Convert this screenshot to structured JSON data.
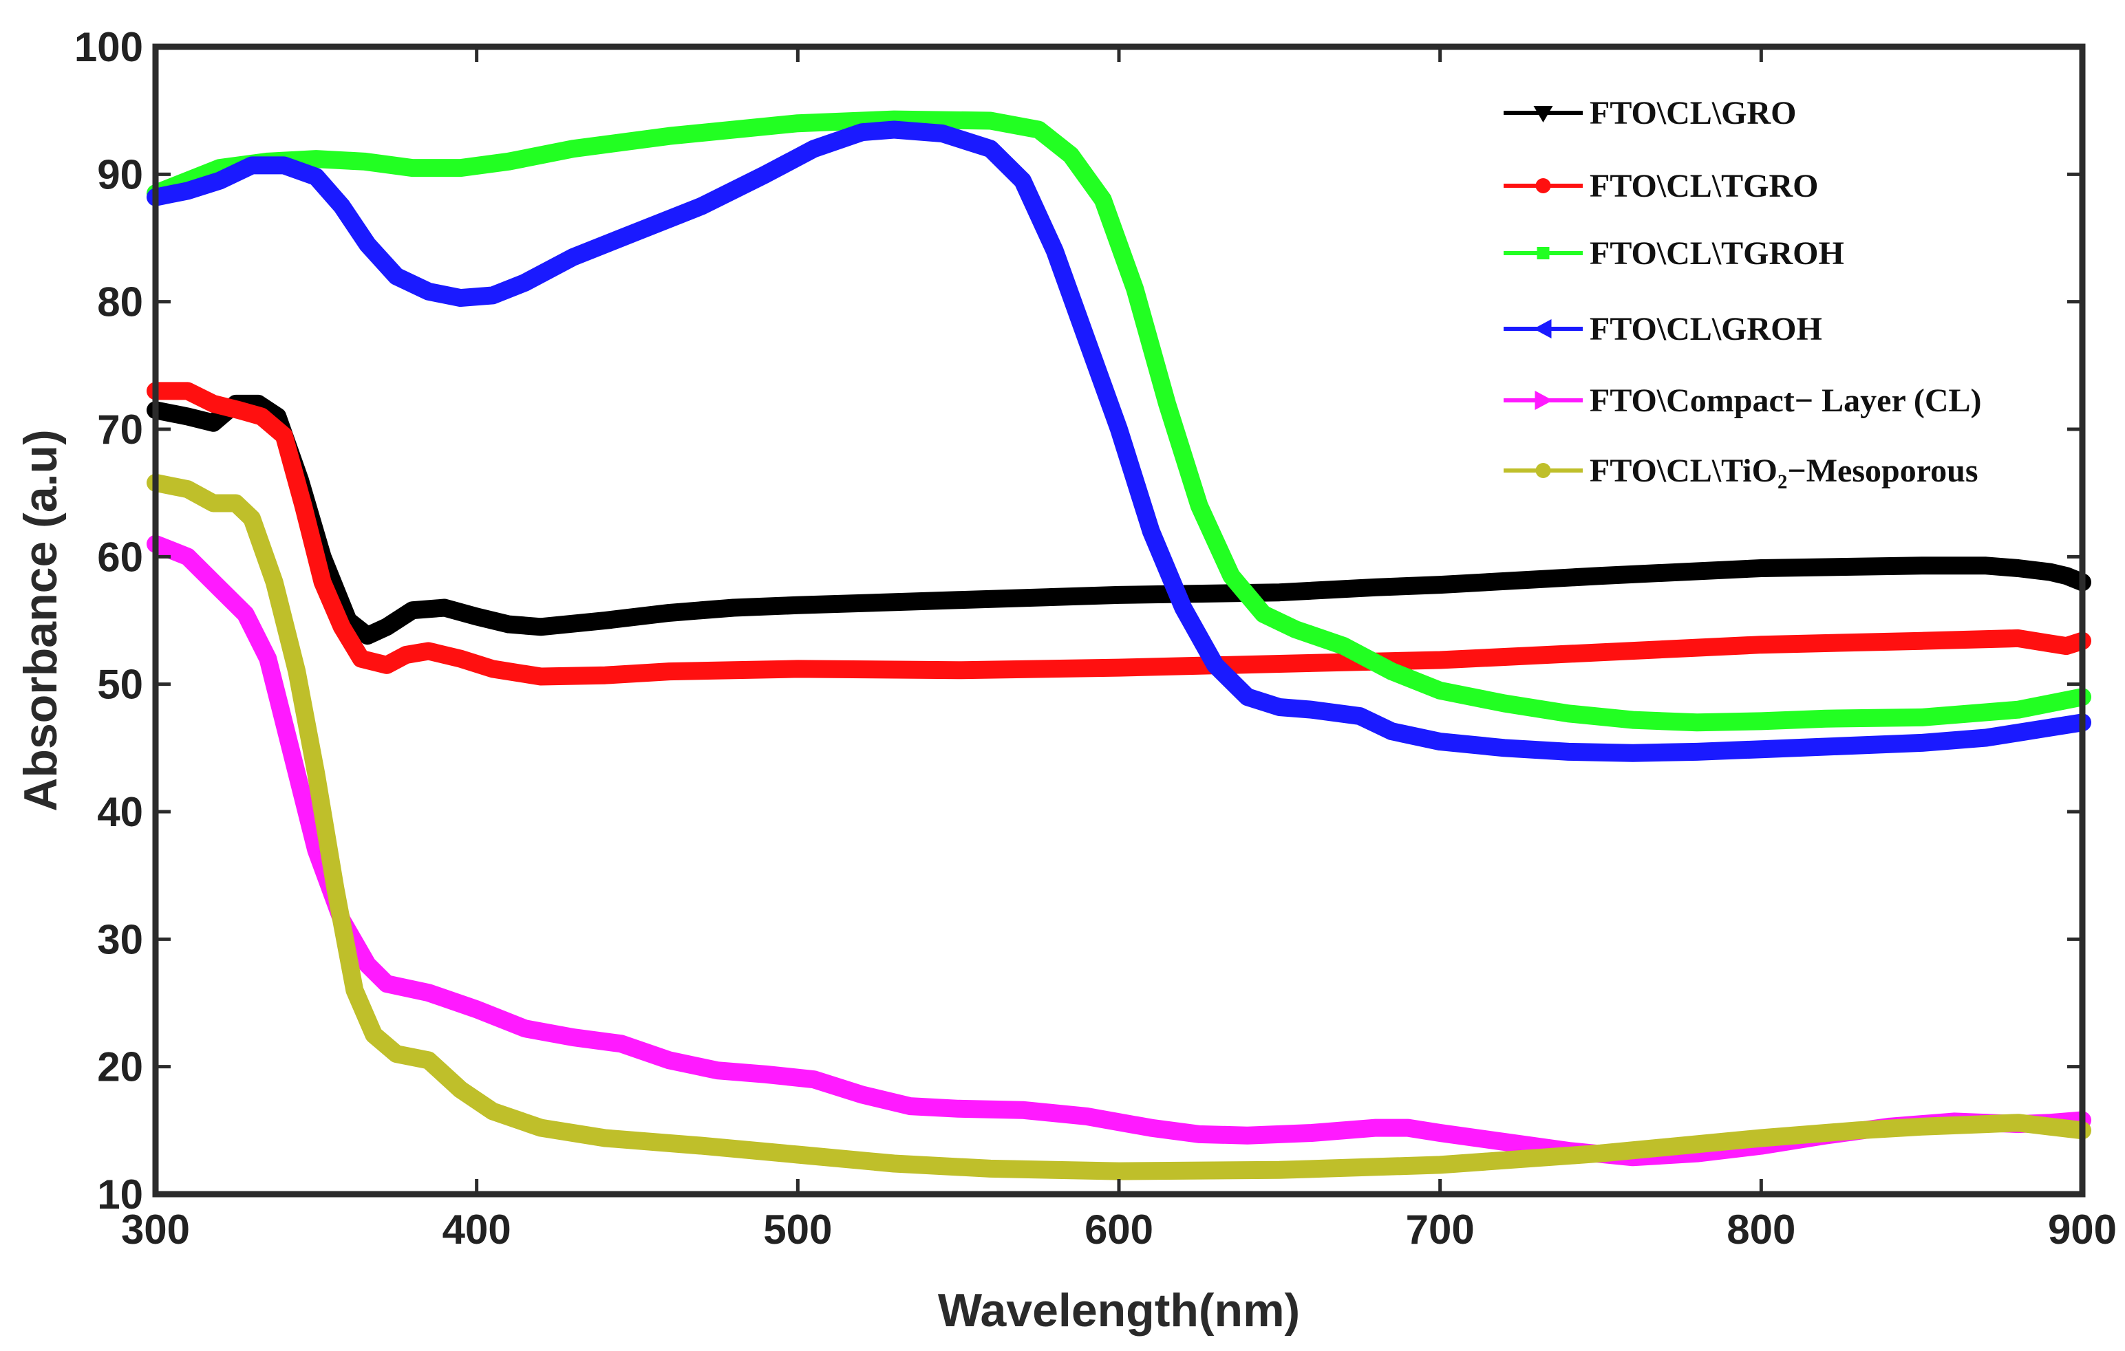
{
  "chart_data": {
    "type": "line",
    "title": "",
    "xlabel": "Wavelength(nm)",
    "ylabel": "Absorbance (a.u)",
    "xlim": [
      300,
      900
    ],
    "ylim": [
      10,
      100
    ],
    "xticks": [
      300,
      400,
      500,
      600,
      700,
      800,
      900
    ],
    "yticks": [
      10,
      20,
      30,
      40,
      50,
      60,
      70,
      80,
      90,
      100
    ],
    "grid": false,
    "legend_position": "top-right",
    "series": [
      {
        "name": "FTO\\CL\\GRO",
        "color": "#000000",
        "marker": "triangle-down",
        "points": [
          [
            300,
            71.5
          ],
          [
            310,
            71
          ],
          [
            318,
            70.5
          ],
          [
            325,
            72
          ],
          [
            332,
            72
          ],
          [
            338,
            71
          ],
          [
            345,
            66
          ],
          [
            352,
            60
          ],
          [
            360,
            55
          ],
          [
            366,
            53.8
          ],
          [
            372,
            54.5
          ],
          [
            380,
            55.8
          ],
          [
            390,
            56
          ],
          [
            400,
            55.3
          ],
          [
            410,
            54.7
          ],
          [
            420,
            54.5
          ],
          [
            440,
            55
          ],
          [
            460,
            55.6
          ],
          [
            480,
            56
          ],
          [
            500,
            56.2
          ],
          [
            550,
            56.6
          ],
          [
            600,
            57
          ],
          [
            650,
            57.2
          ],
          [
            680,
            57.6
          ],
          [
            700,
            57.8
          ],
          [
            750,
            58.5
          ],
          [
            800,
            59.1
          ],
          [
            850,
            59.3
          ],
          [
            870,
            59.3
          ],
          [
            880,
            59.1
          ],
          [
            890,
            58.8
          ],
          [
            895,
            58.5
          ],
          [
            900,
            58
          ]
        ]
      },
      {
        "name": "FTO\\CL\\TGRO",
        "color": "#ff1010",
        "marker": "circle",
        "points": [
          [
            300,
            73
          ],
          [
            310,
            73
          ],
          [
            318,
            72
          ],
          [
            326,
            71.5
          ],
          [
            333,
            71
          ],
          [
            340,
            69.5
          ],
          [
            346,
            64
          ],
          [
            352,
            58
          ],
          [
            358,
            54.5
          ],
          [
            364,
            52
          ],
          [
            372,
            51.5
          ],
          [
            378,
            52.3
          ],
          [
            385,
            52.6
          ],
          [
            395,
            52
          ],
          [
            405,
            51.2
          ],
          [
            420,
            50.6
          ],
          [
            440,
            50.7
          ],
          [
            460,
            51
          ],
          [
            480,
            51.1
          ],
          [
            500,
            51.2
          ],
          [
            550,
            51.1
          ],
          [
            600,
            51.3
          ],
          [
            650,
            51.6
          ],
          [
            700,
            51.9
          ],
          [
            750,
            52.5
          ],
          [
            800,
            53.1
          ],
          [
            850,
            53.4
          ],
          [
            880,
            53.6
          ],
          [
            890,
            53.2
          ],
          [
            895,
            53
          ],
          [
            900,
            53.4
          ]
        ]
      },
      {
        "name": "FTO\\CL\\TGROH",
        "color": "#22ff22",
        "marker": "square",
        "points": [
          [
            300,
            88.5
          ],
          [
            310,
            89.5
          ],
          [
            320,
            90.5
          ],
          [
            335,
            91
          ],
          [
            350,
            91.2
          ],
          [
            365,
            91
          ],
          [
            380,
            90.5
          ],
          [
            395,
            90.5
          ],
          [
            410,
            91
          ],
          [
            430,
            92
          ],
          [
            460,
            93
          ],
          [
            500,
            94
          ],
          [
            530,
            94.3
          ],
          [
            560,
            94.2
          ],
          [
            575,
            93.5
          ],
          [
            585,
            91.5
          ],
          [
            595,
            88
          ],
          [
            605,
            81
          ],
          [
            615,
            72
          ],
          [
            625,
            64
          ],
          [
            635,
            58.5
          ],
          [
            645,
            55.5
          ],
          [
            655,
            54.3
          ],
          [
            670,
            53
          ],
          [
            685,
            51
          ],
          [
            700,
            49.5
          ],
          [
            720,
            48.5
          ],
          [
            740,
            47.7
          ],
          [
            760,
            47.2
          ],
          [
            780,
            47
          ],
          [
            800,
            47.1
          ],
          [
            820,
            47.3
          ],
          [
            850,
            47.4
          ],
          [
            870,
            47.8
          ],
          [
            880,
            48
          ],
          [
            890,
            48.5
          ],
          [
            900,
            49
          ]
        ]
      },
      {
        "name": "FTO\\CL\\GROH",
        "color": "#1a1aff",
        "marker": "triangle-left",
        "points": [
          [
            300,
            88.2
          ],
          [
            310,
            88.7
          ],
          [
            320,
            89.5
          ],
          [
            330,
            90.7
          ],
          [
            340,
            90.7
          ],
          [
            350,
            89.8
          ],
          [
            358,
            87.5
          ],
          [
            366,
            84.5
          ],
          [
            375,
            82
          ],
          [
            385,
            80.8
          ],
          [
            395,
            80.3
          ],
          [
            405,
            80.5
          ],
          [
            415,
            81.5
          ],
          [
            430,
            83.5
          ],
          [
            450,
            85.5
          ],
          [
            470,
            87.5
          ],
          [
            490,
            90
          ],
          [
            505,
            92
          ],
          [
            520,
            93.3
          ],
          [
            530,
            93.5
          ],
          [
            545,
            93.2
          ],
          [
            560,
            92
          ],
          [
            570,
            89.5
          ],
          [
            580,
            84
          ],
          [
            590,
            77
          ],
          [
            600,
            70
          ],
          [
            610,
            62
          ],
          [
            620,
            56
          ],
          [
            630,
            51.5
          ],
          [
            640,
            49
          ],
          [
            650,
            48.2
          ],
          [
            660,
            48
          ],
          [
            675,
            47.5
          ],
          [
            685,
            46.3
          ],
          [
            700,
            45.5
          ],
          [
            720,
            45
          ],
          [
            740,
            44.7
          ],
          [
            760,
            44.6
          ],
          [
            780,
            44.7
          ],
          [
            800,
            44.9
          ],
          [
            820,
            45.1
          ],
          [
            850,
            45.4
          ],
          [
            870,
            45.8
          ],
          [
            880,
            46.2
          ],
          [
            890,
            46.6
          ],
          [
            900,
            47
          ]
        ]
      },
      {
        "name": "FTO\\Compact− Layer (CL)",
        "color": "#ff1aff",
        "marker": "triangle-right",
        "points": [
          [
            300,
            61
          ],
          [
            310,
            60
          ],
          [
            320,
            57.5
          ],
          [
            328,
            55.5
          ],
          [
            335,
            52
          ],
          [
            342,
            45
          ],
          [
            350,
            37
          ],
          [
            358,
            31.5
          ],
          [
            366,
            28
          ],
          [
            372,
            26.5
          ],
          [
            385,
            25.8
          ],
          [
            400,
            24.5
          ],
          [
            415,
            23
          ],
          [
            430,
            22.3
          ],
          [
            445,
            21.8
          ],
          [
            460,
            20.5
          ],
          [
            475,
            19.7
          ],
          [
            490,
            19.4
          ],
          [
            505,
            19
          ],
          [
            520,
            17.8
          ],
          [
            535,
            16.9
          ],
          [
            550,
            16.7
          ],
          [
            570,
            16.6
          ],
          [
            590,
            16.1
          ],
          [
            610,
            15.2
          ],
          [
            625,
            14.7
          ],
          [
            640,
            14.6
          ],
          [
            660,
            14.8
          ],
          [
            680,
            15.2
          ],
          [
            690,
            15.2
          ],
          [
            700,
            14.8
          ],
          [
            720,
            14.1
          ],
          [
            740,
            13.4
          ],
          [
            760,
            12.9
          ],
          [
            780,
            13.2
          ],
          [
            800,
            13.8
          ],
          [
            820,
            14.6
          ],
          [
            840,
            15.3
          ],
          [
            860,
            15.7
          ],
          [
            880,
            15.5
          ],
          [
            890,
            15.6
          ],
          [
            900,
            15.8
          ]
        ]
      },
      {
        "name": "FTO\\CL\\TiO₂−Mesoporous",
        "color": "#bfbf2a",
        "marker": "circle",
        "points": [
          [
            300,
            65.8
          ],
          [
            310,
            65.3
          ],
          [
            318,
            64.2
          ],
          [
            325,
            64.2
          ],
          [
            330,
            63
          ],
          [
            337,
            58
          ],
          [
            344,
            51
          ],
          [
            350,
            43
          ],
          [
            356,
            34
          ],
          [
            362,
            26
          ],
          [
            368,
            22.5
          ],
          [
            375,
            21
          ],
          [
            385,
            20.5
          ],
          [
            395,
            18.2
          ],
          [
            405,
            16.5
          ],
          [
            420,
            15.2
          ],
          [
            440,
            14.4
          ],
          [
            470,
            13.8
          ],
          [
            500,
            13.1
          ],
          [
            530,
            12.4
          ],
          [
            560,
            12
          ],
          [
            600,
            11.8
          ],
          [
            650,
            11.9
          ],
          [
            700,
            12.3
          ],
          [
            750,
            13.2
          ],
          [
            800,
            14.4
          ],
          [
            830,
            15
          ],
          [
            850,
            15.3
          ],
          [
            870,
            15.5
          ],
          [
            880,
            15.6
          ],
          [
            890,
            15.3
          ],
          [
            900,
            15
          ]
        ]
      }
    ]
  }
}
